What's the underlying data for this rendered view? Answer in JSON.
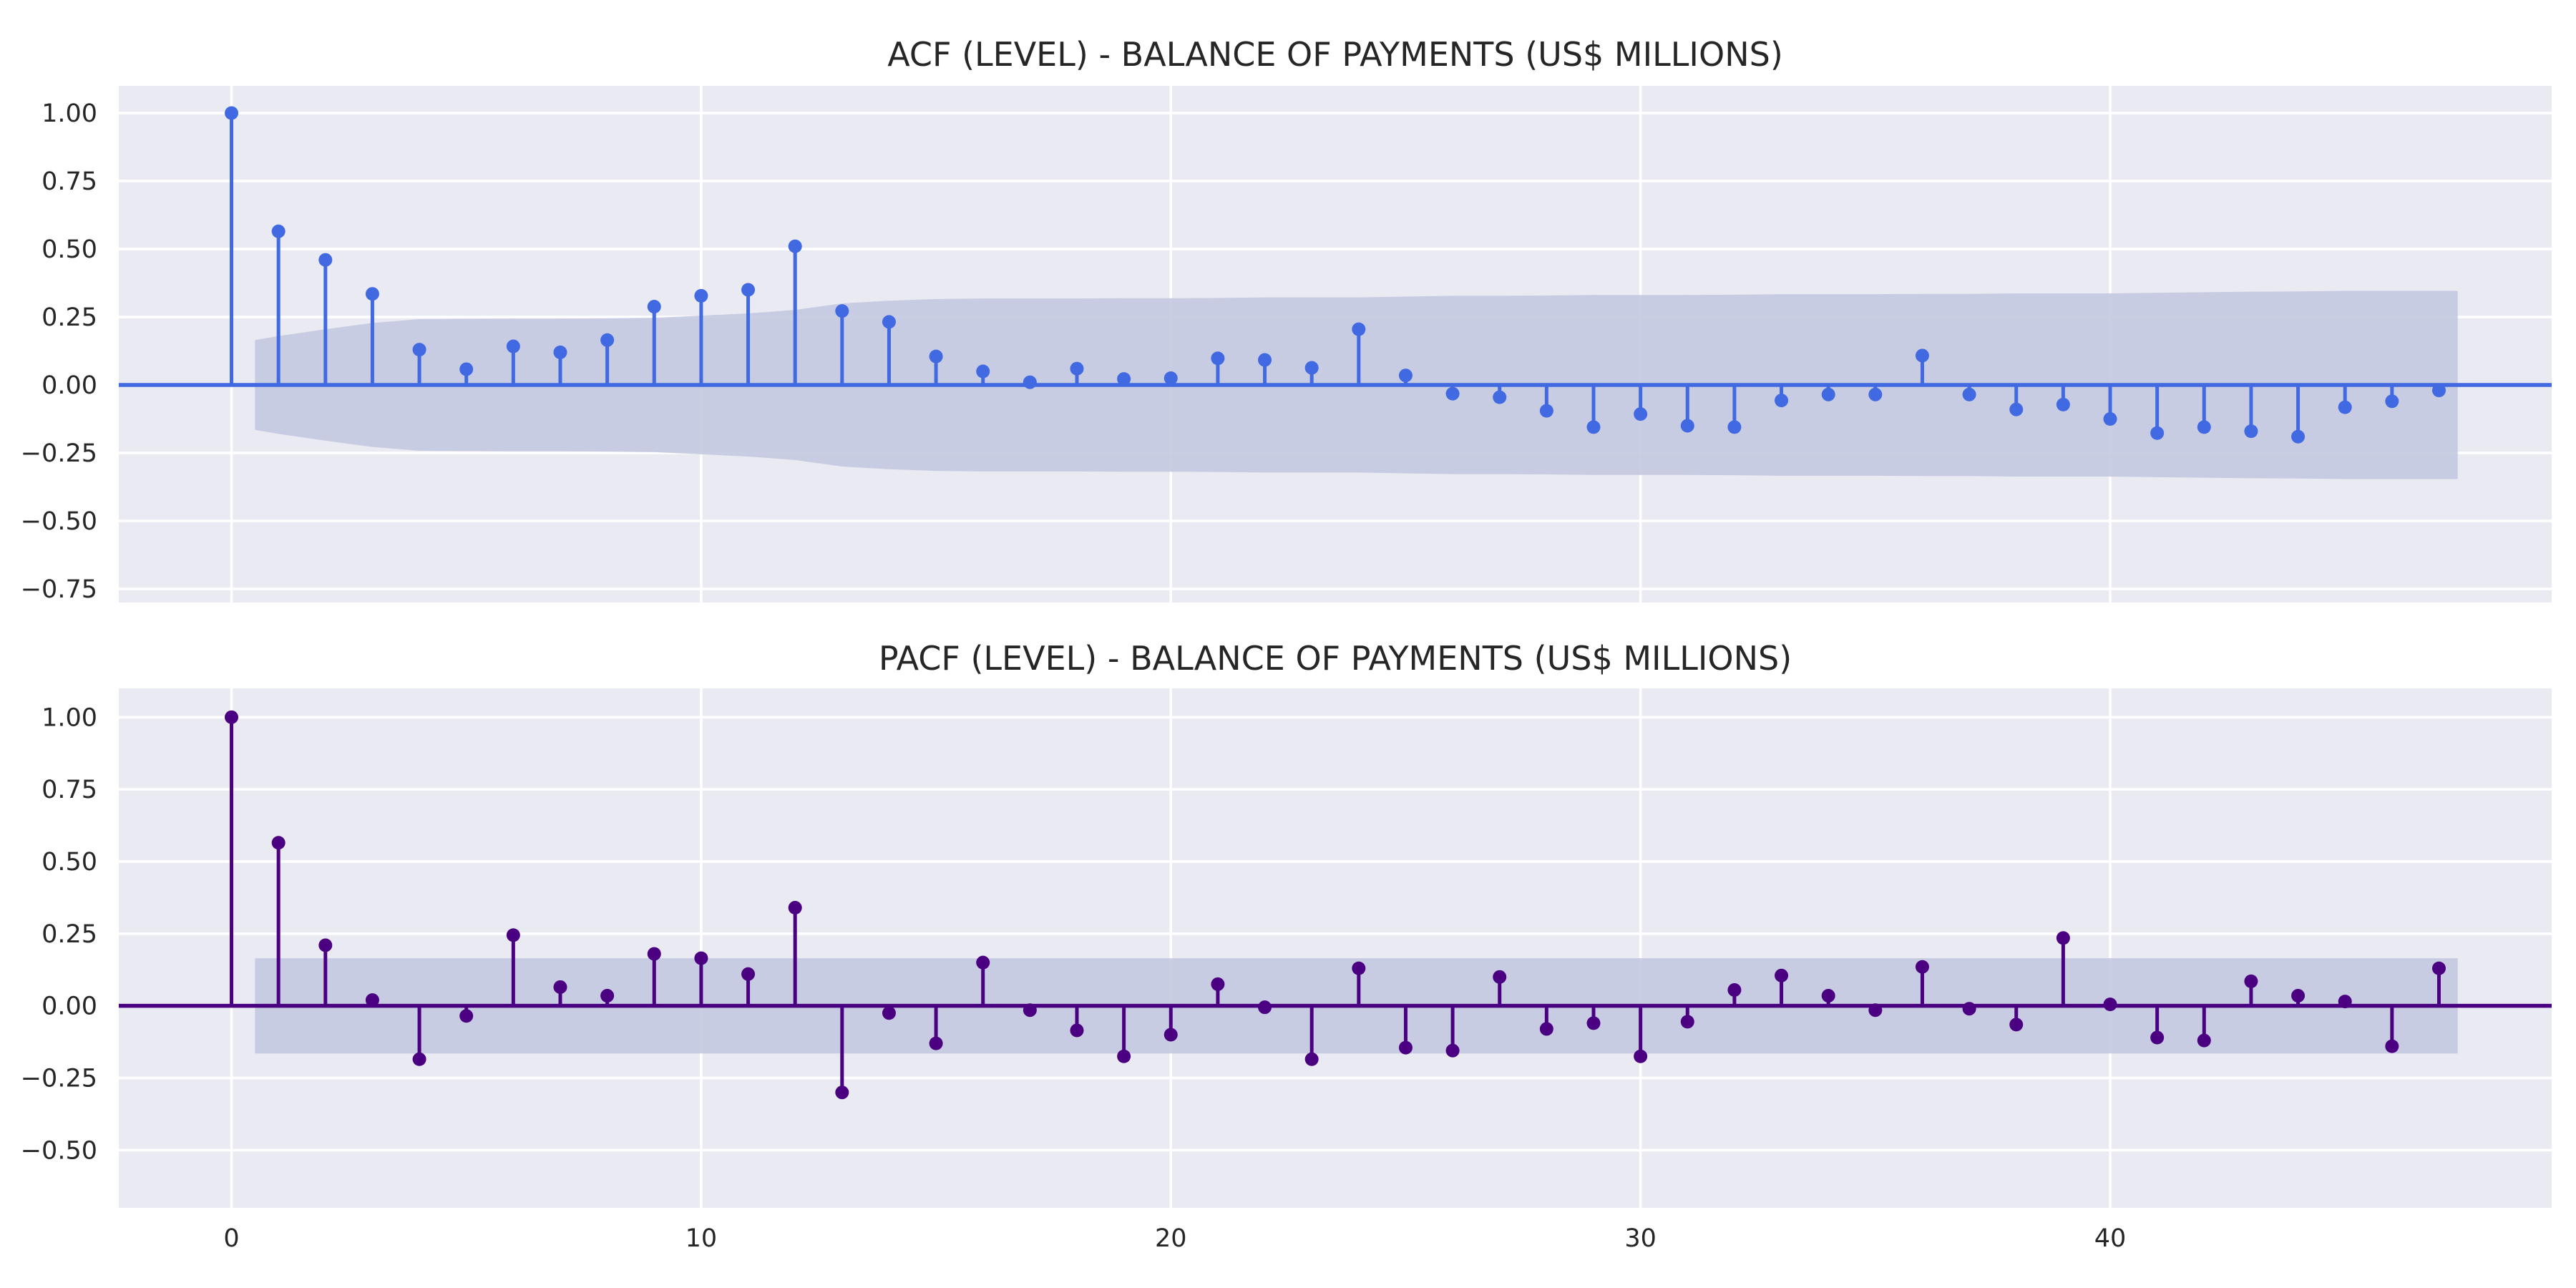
{
  "chart_data": [
    {
      "type": "stem",
      "title": "ACF (LEVEL) - BALANCE OF PAYMENTS (US$ MILLIONS)",
      "xlabel": "",
      "ylabel": "",
      "xlim": [
        -2.4,
        49.4
      ],
      "ylim": [
        -0.8,
        1.1
      ],
      "xticks": [
        0,
        10,
        20,
        30,
        40
      ],
      "yticks": [
        -0.75,
        -0.5,
        -0.25,
        0.0,
        0.25,
        0.5,
        0.75,
        1.0
      ],
      "ytick_labels": [
        "−0.75",
        "−0.50",
        "−0.25",
        "0.00",
        "0.25",
        "0.50",
        "0.75",
        "1.00"
      ],
      "show_xtick_labels": false,
      "color": "#4169e1",
      "confidence_color": "#c3c9e0",
      "lags": [
        0,
        1,
        2,
        3,
        4,
        5,
        6,
        7,
        8,
        9,
        10,
        11,
        12,
        13,
        14,
        15,
        16,
        17,
        18,
        19,
        20,
        21,
        22,
        23,
        24,
        25,
        26,
        27,
        28,
        29,
        30,
        31,
        32,
        33,
        34,
        35,
        36,
        37,
        38,
        39,
        40,
        41,
        42,
        43,
        44,
        45,
        46,
        47
      ],
      "values": [
        1.0,
        0.565,
        0.46,
        0.335,
        0.13,
        0.058,
        0.142,
        0.12,
        0.165,
        0.288,
        0.328,
        0.35,
        0.51,
        0.272,
        0.232,
        0.105,
        0.05,
        0.01,
        0.06,
        0.022,
        0.025,
        0.098,
        0.092,
        0.063,
        0.205,
        0.035,
        -0.032,
        -0.045,
        -0.095,
        -0.155,
        -0.107,
        -0.15,
        -0.155,
        -0.057,
        -0.035,
        -0.035,
        0.108,
        -0.035,
        -0.09,
        -0.072,
        -0.125,
        -0.177,
        -0.155,
        -0.17,
        -0.19,
        -0.082,
        -0.06,
        -0.02
      ],
      "conf_lags": [
        0.5,
        1,
        2,
        3,
        4,
        5,
        6,
        7,
        8,
        9,
        10,
        11,
        12,
        13,
        14,
        15,
        16,
        17,
        18,
        19,
        20,
        21,
        22,
        23,
        24,
        25,
        26,
        27,
        28,
        29,
        30,
        31,
        32,
        33,
        34,
        35,
        36,
        37,
        38,
        39,
        40,
        41,
        42,
        43,
        44,
        45,
        46,
        47.4
      ],
      "conf_upper": [
        0.165,
        0.18,
        0.205,
        0.228,
        0.242,
        0.243,
        0.244,
        0.244,
        0.245,
        0.247,
        0.255,
        0.263,
        0.276,
        0.3,
        0.31,
        0.316,
        0.318,
        0.318,
        0.318,
        0.319,
        0.319,
        0.32,
        0.322,
        0.322,
        0.322,
        0.325,
        0.328,
        0.328,
        0.329,
        0.331,
        0.331,
        0.331,
        0.332,
        0.334,
        0.334,
        0.334,
        0.335,
        0.335,
        0.337,
        0.337,
        0.337,
        0.339,
        0.341,
        0.343,
        0.344,
        0.346,
        0.346,
        0.346
      ]
    },
    {
      "type": "stem",
      "title": "PACF (LEVEL) - BALANCE OF PAYMENTS (US$ MILLIONS)",
      "xlabel": "",
      "ylabel": "",
      "xlim": [
        -2.4,
        49.4
      ],
      "ylim": [
        -0.7,
        1.1
      ],
      "xticks": [
        0,
        10,
        20,
        30,
        40
      ],
      "yticks": [
        -0.5,
        -0.25,
        0.0,
        0.25,
        0.5,
        0.75,
        1.0
      ],
      "ytick_labels": [
        "−0.50",
        "−0.25",
        "0.00",
        "0.25",
        "0.50",
        "0.75",
        "1.00"
      ],
      "show_xtick_labels": true,
      "color": "#4b0082",
      "confidence_color": "#c3c9e0",
      "lags": [
        0,
        1,
        2,
        3,
        4,
        5,
        6,
        7,
        8,
        9,
        10,
        11,
        12,
        13,
        14,
        15,
        16,
        17,
        18,
        19,
        20,
        21,
        22,
        23,
        24,
        25,
        26,
        27,
        28,
        29,
        30,
        31,
        32,
        33,
        34,
        35,
        36,
        37,
        38,
        39,
        40,
        41,
        42,
        43,
        44,
        45,
        46,
        47
      ],
      "values": [
        1.0,
        0.565,
        0.21,
        0.02,
        -0.185,
        -0.035,
        0.245,
        0.065,
        0.035,
        0.18,
        0.165,
        0.11,
        0.34,
        -0.3,
        -0.025,
        -0.13,
        0.15,
        -0.015,
        -0.085,
        -0.175,
        -0.1,
        0.075,
        -0.005,
        -0.185,
        0.13,
        -0.145,
        -0.155,
        0.1,
        -0.08,
        -0.06,
        -0.175,
        -0.055,
        0.055,
        0.105,
        0.035,
        -0.015,
        0.135,
        -0.01,
        -0.065,
        0.235,
        0.005,
        -0.11,
        -0.12,
        0.085,
        0.035,
        0.015,
        -0.14,
        0.13
      ],
      "conf_lags": [
        0.5,
        47.4
      ],
      "conf_upper": [
        0.165,
        0.165
      ]
    }
  ]
}
